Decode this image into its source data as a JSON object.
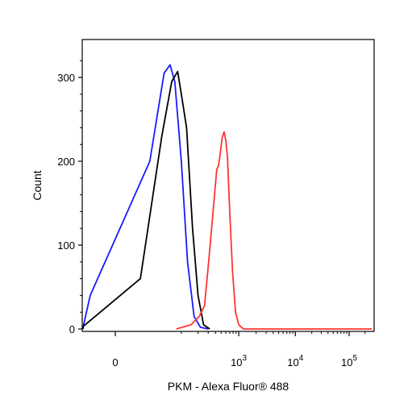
{
  "chart_data": {
    "type": "line",
    "title": "",
    "xlabel": "PKM - Alexa Fluor® 488",
    "ylabel": "Count",
    "x_scale": "biexponential",
    "ylim": [
      0,
      335
    ],
    "y_ticks": [
      {
        "value": 0,
        "label": "0"
      },
      {
        "value": 100,
        "label": "100"
      },
      {
        "value": 200,
        "label": "200"
      },
      {
        "value": 300,
        "label": "300"
      }
    ],
    "x_ticks": [
      {
        "value": 0,
        "label": "0",
        "exp": ""
      },
      {
        "value": 1000,
        "label": "10",
        "exp": "3"
      },
      {
        "value": 10000,
        "label": "10",
        "exp": "4"
      },
      {
        "value": 100000,
        "label": "10",
        "exp": "5"
      }
    ],
    "grid": false,
    "legend": "none",
    "series": [
      {
        "color": "#1a1aff",
        "points": [
          [
            -130,
            0
          ],
          [
            -60,
            2
          ],
          [
            -10,
            40
          ],
          [
            20,
            200
          ],
          [
            45,
            305
          ],
          [
            60,
            315
          ],
          [
            75,
            295
          ],
          [
            100,
            200
          ],
          [
            130,
            80
          ],
          [
            170,
            15
          ],
          [
            220,
            2
          ],
          [
            300,
            0
          ]
        ]
      },
      {
        "color": "#000000",
        "points": [
          [
            -110,
            0
          ],
          [
            -40,
            3
          ],
          [
            10,
            60
          ],
          [
            40,
            230
          ],
          [
            65,
            295
          ],
          [
            85,
            307
          ],
          [
            100,
            280
          ],
          [
            125,
            240
          ],
          [
            160,
            120
          ],
          [
            200,
            40
          ],
          [
            250,
            5
          ],
          [
            320,
            0
          ]
        ]
      },
      {
        "color": "#ff3333",
        "points": [
          [
            80,
            0
          ],
          [
            150,
            5
          ],
          [
            210,
            15
          ],
          [
            260,
            28
          ],
          [
            320,
            95
          ],
          [
            380,
            155
          ],
          [
            420,
            190
          ],
          [
            450,
            195
          ],
          [
            480,
            208
          ],
          [
            520,
            228
          ],
          [
            560,
            235
          ],
          [
            600,
            225
          ],
          [
            640,
            205
          ],
          [
            700,
            140
          ],
          [
            780,
            70
          ],
          [
            880,
            20
          ],
          [
            1000,
            5
          ],
          [
            1200,
            0
          ],
          [
            3000,
            0
          ],
          [
            270000,
            0
          ]
        ]
      }
    ]
  }
}
